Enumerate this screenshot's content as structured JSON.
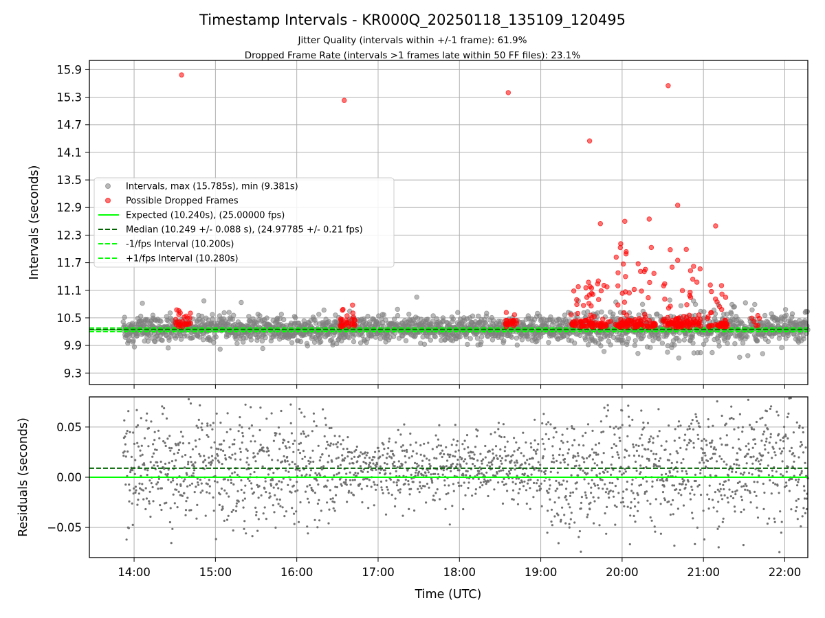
{
  "chart_data": {
    "title": "Timestamp Intervals - KR000Q_20250118_135109_120495",
    "subtitles": [
      "Jitter Quality (intervals within +/-1 frame): 61.9%",
      "Dropped Frame Rate (intervals >1 frames late within 50 FF files): 23.1%"
    ],
    "xlabel": "Time (UTC)",
    "x_ticks": [
      "14:00",
      "15:00",
      "16:00",
      "17:00",
      "18:00",
      "19:00",
      "20:00",
      "21:00",
      "22:00"
    ],
    "xlim": [
      "13:27",
      "22:17"
    ],
    "charts": [
      {
        "type": "scatter",
        "ylabel": "Intervals (seconds)",
        "ylim": [
          9.05,
          16.1
        ],
        "y_ticks": [
          "9.3",
          "9.9",
          "10.5",
          "11.1",
          "11.7",
          "12.3",
          "12.9",
          "13.5",
          "14.1",
          "14.7",
          "15.3",
          "15.9"
        ],
        "grid": true,
        "legend_position": "center-left",
        "legend": [
          "Intervals, max (15.785s), min (9.381s)",
          "Possible Dropped Frames",
          "Expected (10.240s), (25.00000 fps)",
          "Median (10.249 +/- 0.088 s), (24.97785 +/- 0.21 fps)",
          "-1/fps Interval (10.200s)",
          "+1/fps Interval (10.280s)"
        ],
        "reference_lines": {
          "expected": 10.24,
          "median": 10.249,
          "minus_one_frame": 10.2,
          "plus_one_frame": 10.28
        },
        "series": [
          {
            "name": "Intervals",
            "color": "#808080",
            "points": "~2100 interval samples spread from 13:52 to 22:17, mostly between 9.7 and 10.9 s"
          },
          {
            "name": "Possible Dropped Frames",
            "color": "#ff0000",
            "notable_points": [
              {
                "x": "14:35",
                "y": 15.785
              },
              {
                "x": "16:35",
                "y": 15.23
              },
              {
                "x": "18:36",
                "y": 15.4
              },
              {
                "x": "19:36",
                "y": 14.35
              },
              {
                "x": "20:34",
                "y": 15.55
              },
              {
                "x": "20:41",
                "y": 12.95
              },
              {
                "x": "20:20",
                "y": 12.65
              },
              {
                "x": "20:02",
                "y": 12.6
              },
              {
                "x": "19:44",
                "y": 12.55
              },
              {
                "x": "21:09",
                "y": 12.5
              }
            ]
          }
        ]
      },
      {
        "type": "scatter",
        "ylabel": "Residuals (seconds)",
        "ylim": [
          -0.08,
          0.08
        ],
        "y_ticks": [
          "−0.05",
          "0.00",
          "0.05"
        ],
        "grid": true,
        "reference_lines": {
          "expected": 0.0,
          "median": 0.009
        },
        "series": [
          {
            "name": "Residuals",
            "color": "#808080",
            "points": "~2000 residual samples from 13:52 to 22:17 within ±0.08 s"
          }
        ]
      }
    ]
  },
  "colors": {
    "intervals": "#808080",
    "dropped": "#ff0000",
    "expected": "#00ff00",
    "median": "#006400",
    "grid": "#b0b0b0"
  }
}
